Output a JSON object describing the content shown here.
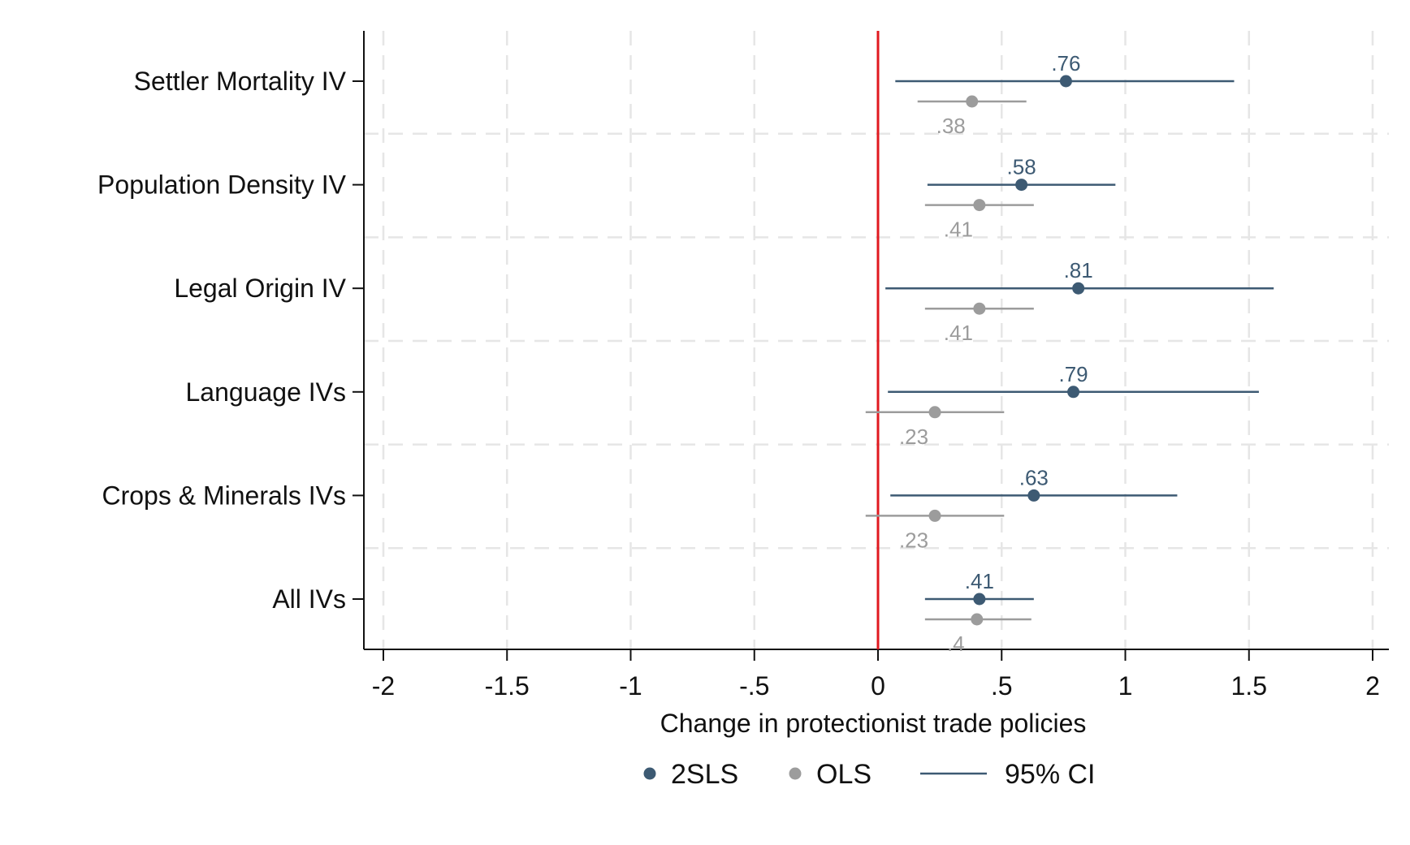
{
  "chart_data": {
    "type": "scatter",
    "subtype": "coefficient-plot",
    "title": "",
    "xlabel": "Change in protectionist trade policies",
    "ylabel": "",
    "xlim": [
      -2,
      2
    ],
    "x_ticks": [
      -2,
      -1.5,
      -1,
      -0.5,
      0,
      0.5,
      1,
      1.5,
      2
    ],
    "x_tick_labels": [
      "-2",
      "-1.5",
      "-1",
      "-.5",
      "0",
      ".5",
      "1",
      "1.5",
      "2"
    ],
    "reference_line": {
      "x": 0,
      "color": "#e0191f"
    },
    "grid": true,
    "categories": [
      "Settler Mortality IV",
      "Population Density IV",
      "Legal Origin IV",
      "Language IVs",
      "Crops & Minerals IVs",
      "All IVs"
    ],
    "series": [
      {
        "name": "2SLS",
        "color": "#3d5a73",
        "estimates": [
          0.76,
          0.58,
          0.81,
          0.79,
          0.63,
          0.41
        ],
        "labels": [
          ".76",
          ".58",
          ".81",
          ".79",
          ".63",
          ".41"
        ],
        "ci_low": [
          0.07,
          0.2,
          0.03,
          0.04,
          0.05,
          0.19
        ],
        "ci_high": [
          1.44,
          0.96,
          1.6,
          1.54,
          1.21,
          0.63
        ]
      },
      {
        "name": "OLS",
        "color": "#9c9c9c",
        "estimates": [
          0.38,
          0.41,
          0.41,
          0.23,
          0.23,
          0.4
        ],
        "labels": [
          ".38",
          ".41",
          ".41",
          ".23",
          ".23",
          ".4"
        ],
        "ci_low": [
          0.16,
          0.19,
          0.19,
          -0.05,
          -0.05,
          0.19
        ],
        "ci_high": [
          0.6,
          0.63,
          0.63,
          0.51,
          0.51,
          0.62
        ]
      }
    ],
    "legend": {
      "position": "bottom",
      "items": [
        "2SLS",
        "OLS",
        "95% CI"
      ]
    }
  }
}
